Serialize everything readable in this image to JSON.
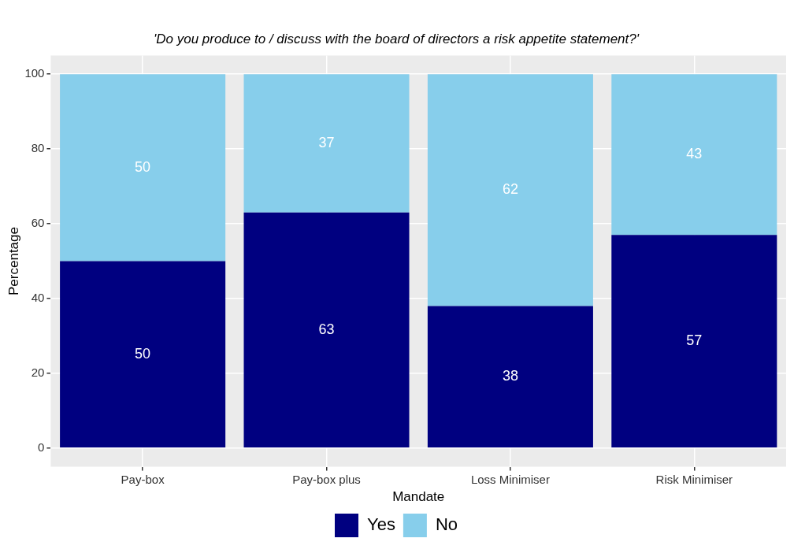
{
  "chart_data": {
    "type": "bar",
    "title": "'Do you produce to / discuss with the board of directors a risk appetite statement?'",
    "xlabel": "Mandate",
    "ylabel": "Percentage",
    "categories": [
      "Pay-box",
      "Pay-box plus",
      "Loss Minimiser",
      "Risk Minimiser"
    ],
    "series": [
      {
        "name": "Yes",
        "color": "#000080",
        "values": [
          50,
          63,
          38,
          57
        ]
      },
      {
        "name": "No",
        "color": "#87ceeb",
        "values": [
          50,
          37,
          62,
          43
        ]
      }
    ],
    "stacked": true,
    "data_labels": true,
    "ylim": [
      -5,
      105
    ],
    "yticks": [
      0,
      20,
      40,
      60,
      80,
      100
    ],
    "grid": true,
    "legend": "bottom"
  }
}
